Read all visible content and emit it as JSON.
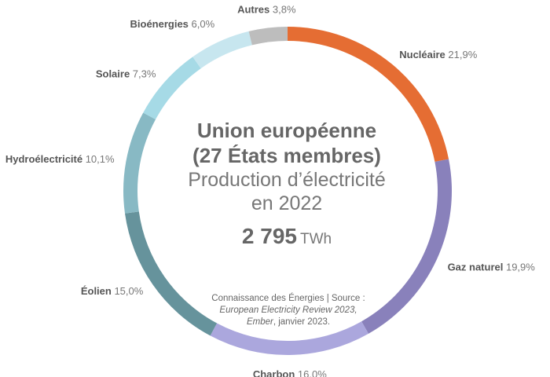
{
  "chart_data": {
    "type": "pie",
    "title": "Union européenne",
    "title_line2": "(27 États membres)",
    "subtitle": "Production d’électricité",
    "subtitle_line2": "en 2022",
    "total": {
      "value": "2 795",
      "unit": "TWh"
    },
    "source": {
      "prefix": "Connaissance des Énergies | Source :",
      "italic_line1": "European Electricity Review 2023,",
      "italic_line2": "Ember",
      "suffix": ", janvier 2023."
    },
    "categories": [
      "Nucléaire",
      "Gaz naturel",
      "Charbon",
      "Éolien",
      "Hydroélectricité",
      "Solaire",
      "Bioénergies",
      "Autres"
    ],
    "values": [
      21.9,
      19.9,
      16.0,
      15.0,
      10.1,
      7.3,
      6.0,
      3.8
    ],
    "value_labels": [
      "21,9%",
      "19,9%",
      "16,0%",
      "15,0%",
      "10,1%",
      "7,3%",
      "6,0%",
      "3,8%"
    ],
    "colors": [
      "#e56d33",
      "#8981bb",
      "#aba7dd",
      "#66939c",
      "#88b9c4",
      "#a6dae6",
      "#c7e6ef",
      "#bdbdbd"
    ],
    "style": "donut"
  }
}
